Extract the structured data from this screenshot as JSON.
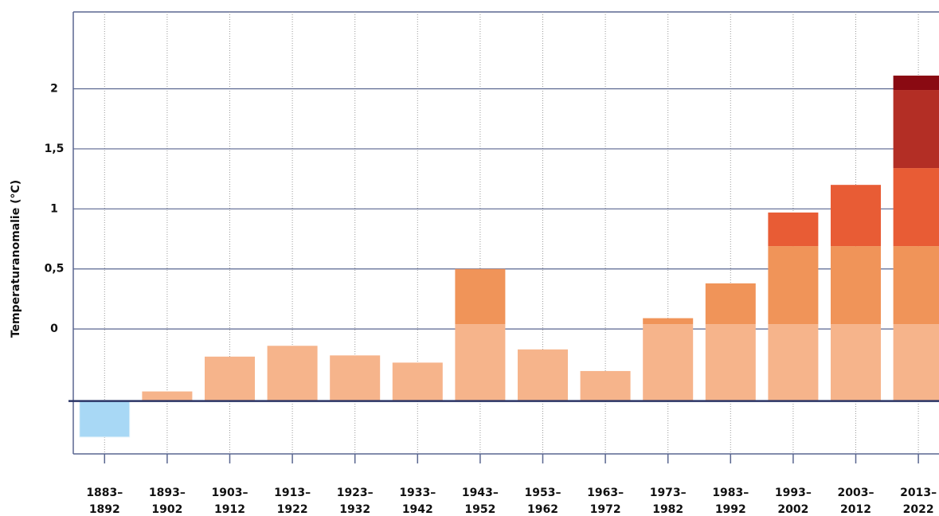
{
  "chart_data": {
    "type": "bar",
    "y_label": "Temperaturanomalie (°C)",
    "categories": [
      [
        "1883–",
        "1892"
      ],
      [
        "1893–",
        "1902"
      ],
      [
        "1903–",
        "1912"
      ],
      [
        "1913–",
        "1922"
      ],
      [
        "1923–",
        "1932"
      ],
      [
        "1933–",
        "1942"
      ],
      [
        "1943–",
        "1952"
      ],
      [
        "1953–",
        "1962"
      ],
      [
        "1963–",
        "1972"
      ],
      [
        "1973–",
        "1982"
      ],
      [
        "1983–",
        "1992"
      ],
      [
        "1993–",
        "2002"
      ],
      [
        "2003–",
        "2012"
      ],
      [
        "2013–",
        "2022"
      ]
    ],
    "values": [
      -0.9,
      -0.52,
      -0.23,
      -0.14,
      -0.22,
      -0.28,
      0.5,
      -0.17,
      -0.35,
      0.09,
      0.38,
      0.97,
      1.2,
      2.11
    ],
    "baseline": -0.6,
    "band_limits": [
      0.04,
      0.69,
      1.34,
      1.99
    ],
    "band_colors": [
      "#f6b48b",
      "#f09459",
      "#e85c35",
      "#b32e25",
      "#8a0a12"
    ],
    "negative_color": "#a8d8f5",
    "ylim": [
      -1.04,
      2.64
    ],
    "yticks": [
      {
        "value": 0,
        "label": "0"
      },
      {
        "value": 0.5,
        "label": "0,5"
      },
      {
        "value": 1,
        "label": "1"
      },
      {
        "value": 1.5,
        "label": "1,5"
      },
      {
        "value": 2,
        "label": "2"
      }
    ],
    "grid": true
  }
}
